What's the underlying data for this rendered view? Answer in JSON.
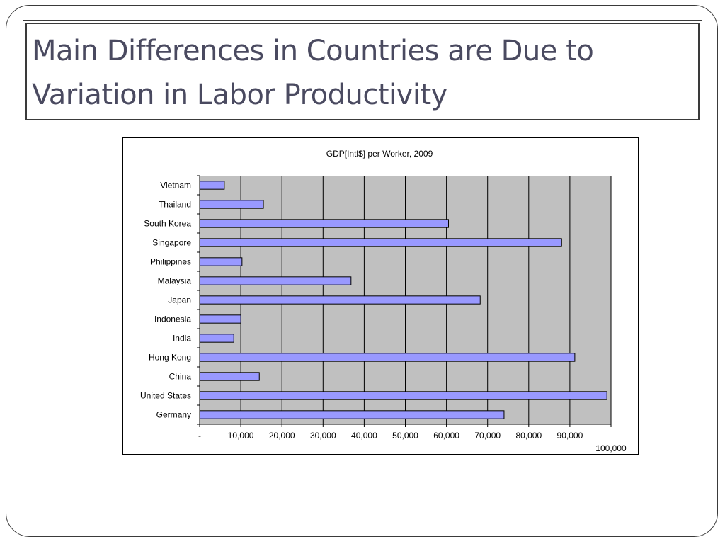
{
  "slide": {
    "title": "Main Differences in Countries are Due to Variation in Labor Productivity"
  },
  "chart_data": {
    "type": "bar",
    "orientation": "horizontal",
    "title": "GDP[Intl$] per Worker, 2009",
    "xlabel": "",
    "ylabel": "",
    "xlim": [
      0,
      100000
    ],
    "grid": true,
    "legend": "none",
    "plot_background": "#c0c0c0",
    "bar_color": "#9999ff",
    "x_tick_labels": [
      "-",
      "10,000",
      "20,000",
      "30,000",
      "40,000",
      "50,000",
      "60,000",
      "70,000",
      "80,000",
      "90,000",
      "100,000"
    ],
    "x_ticks": [
      0,
      10000,
      20000,
      30000,
      40000,
      50000,
      60000,
      70000,
      80000,
      90000,
      100000
    ],
    "categories": [
      "Vietnam",
      "Thailand",
      "South Korea",
      "Singapore",
      "Philippines",
      "Malaysia",
      "Japan",
      "Indonesia",
      "India",
      "Hong Kong",
      "China",
      "United States",
      "Germany"
    ],
    "values": [
      6000,
      15500,
      60500,
      88000,
      10300,
      36800,
      68200,
      10000,
      8300,
      91200,
      14500,
      99000,
      74000
    ]
  }
}
